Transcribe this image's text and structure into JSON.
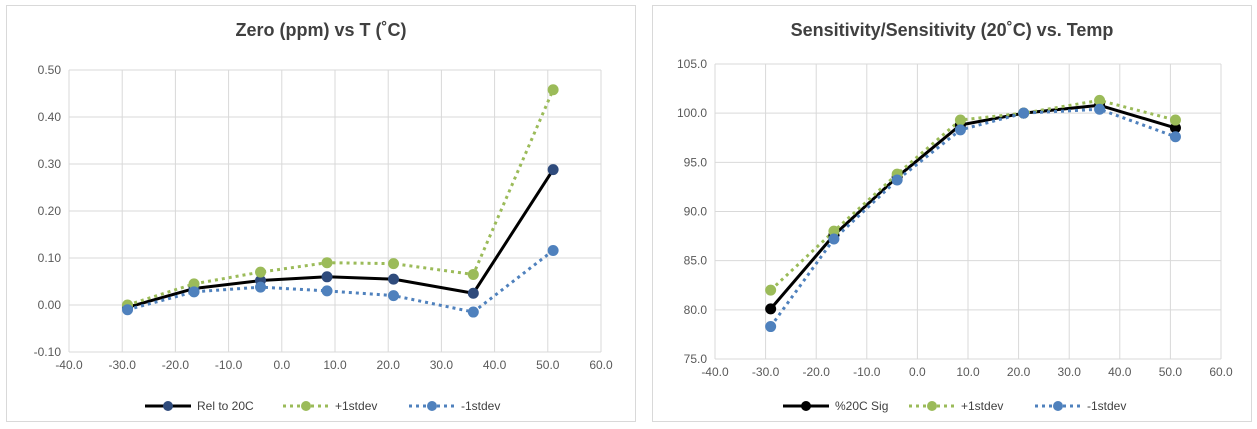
{
  "chart_data": [
    {
      "type": "line",
      "title": "Zero (ppm) vs T (˚C)",
      "xlabel": "",
      "ylabel": "",
      "xlim": [
        -40,
        60
      ],
      "ylim": [
        -0.1,
        0.5
      ],
      "x_ticks": [
        "-40.0",
        "-30.0",
        "-20.0",
        "-10.0",
        "0.0",
        "10.0",
        "20.0",
        "30.0",
        "40.0",
        "50.0",
        "60.0"
      ],
      "y_ticks": [
        "-0.10",
        "0.00",
        "0.10",
        "0.20",
        "0.30",
        "0.40",
        "0.50"
      ],
      "grid": true,
      "legend_position": "bottom",
      "series": [
        {
          "name": "Rel to 20C",
          "color": "#000000",
          "marker_color": "#2f4b7c",
          "style": "solid",
          "x": [
            -29,
            -16.5,
            -4,
            8.5,
            21,
            36,
            51
          ],
          "y": [
            -0.005,
            0.035,
            0.052,
            0.06,
            0.055,
            0.025,
            0.288
          ]
        },
        {
          "name": "+1stdev",
          "color": "#9bbb59",
          "marker_color": "#9bbb59",
          "style": "dotted",
          "x": [
            -29,
            -16.5,
            -4,
            8.5,
            21,
            36,
            51
          ],
          "y": [
            0.0,
            0.045,
            0.07,
            0.09,
            0.088,
            0.065,
            0.458
          ]
        },
        {
          "name": "-1stdev",
          "color": "#4f81bd",
          "marker_color": "#4f81bd",
          "style": "dotted",
          "x": [
            -29,
            -16.5,
            -4,
            8.5,
            21,
            36,
            51
          ],
          "y": [
            -0.01,
            0.028,
            0.038,
            0.03,
            0.02,
            -0.015,
            0.116
          ]
        }
      ]
    },
    {
      "type": "line",
      "title": "Sensitivity/Sensitivity (20˚C) vs. Temp",
      "xlabel": "",
      "ylabel": "",
      "xlim": [
        -40,
        60
      ],
      "ylim": [
        75,
        105
      ],
      "x_ticks": [
        "-40.0",
        "-30.0",
        "-20.0",
        "-10.0",
        "0.0",
        "10.0",
        "20.0",
        "30.0",
        "40.0",
        "50.0",
        "60.0"
      ],
      "y_ticks": [
        "75.0",
        "80.0",
        "85.0",
        "90.0",
        "95.0",
        "100.0",
        "105.0"
      ],
      "grid": true,
      "legend_position": "bottom",
      "series": [
        {
          "name": "%20C Sig",
          "color": "#000000",
          "marker_color": "#000000",
          "style": "solid",
          "x": [
            -29,
            -16.5,
            -4,
            8.5,
            21,
            36,
            51
          ],
          "y": [
            80.1,
            87.6,
            93.5,
            98.8,
            100.0,
            100.8,
            98.5
          ]
        },
        {
          "name": "+1stdev",
          "color": "#9bbb59",
          "marker_color": "#9bbb59",
          "style": "dotted",
          "x": [
            -29,
            -16.5,
            -4,
            8.5,
            21,
            36,
            51
          ],
          "y": [
            82.0,
            88.0,
            93.8,
            99.3,
            100.0,
            101.3,
            99.3
          ]
        },
        {
          "name": "-1stdev",
          "color": "#4f81bd",
          "marker_color": "#4f81bd",
          "style": "dotted",
          "x": [
            -29,
            -16.5,
            -4,
            8.5,
            21,
            36,
            51
          ],
          "y": [
            78.3,
            87.2,
            93.2,
            98.3,
            100.0,
            100.4,
            97.6
          ]
        }
      ]
    }
  ]
}
